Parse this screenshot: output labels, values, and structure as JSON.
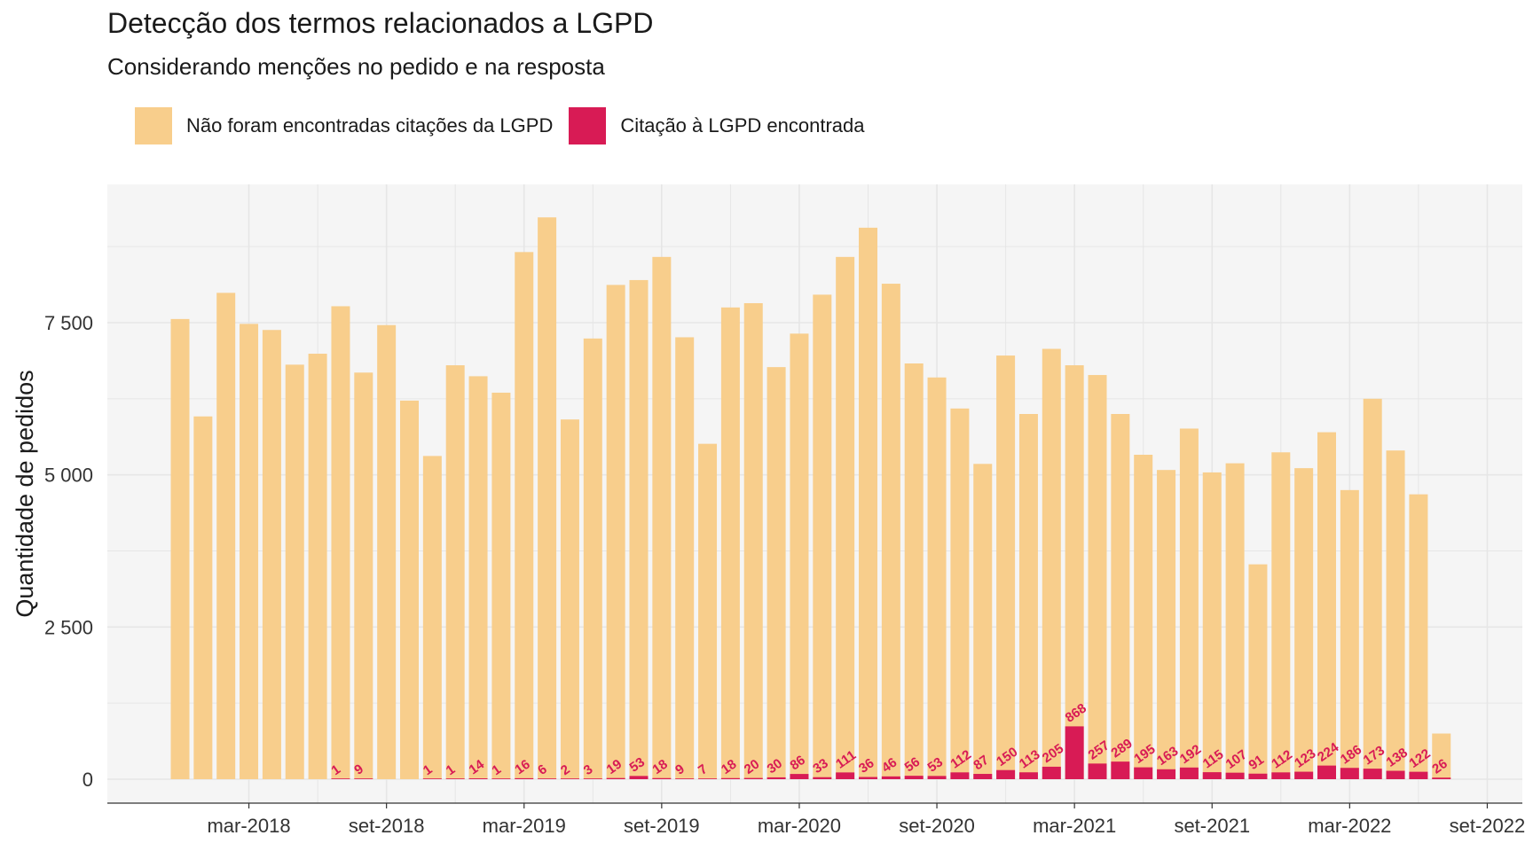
{
  "chart_data": {
    "type": "bar",
    "stacked": true,
    "title": "Detecção dos termos relacionados a LGPD",
    "subtitle": "Considerando menções no pedido e na resposta",
    "ylabel": "Quantidade de pedidos",
    "xlabel": "",
    "ylim": [
      0,
      9700
    ],
    "y_ticks": [
      0,
      2500,
      5000,
      7500
    ],
    "y_tick_labels": [
      "0",
      "2 500",
      "5 000",
      "7 500"
    ],
    "x_ticks": [
      "2018-03",
      "2018-09",
      "2019-03",
      "2019-09",
      "2020-03",
      "2020-09",
      "2021-03",
      "2021-09",
      "2022-03",
      "2022-09"
    ],
    "x_tick_labels": [
      "mar-2018",
      "set-2018",
      "mar-2019",
      "set-2019",
      "mar-2020",
      "set-2020",
      "mar-2021",
      "set-2021",
      "mar-2022",
      "set-2022"
    ],
    "x_range": [
      "2017-11",
      "2022-10"
    ],
    "grid": true,
    "legend_position": "top-left",
    "colors": {
      "not_found": "#f8ce8c",
      "found": "#d81b55",
      "panel": "#f5f5f5",
      "grid": "#e6e6e6"
    },
    "categories": [
      "2017-12",
      "2018-01",
      "2018-02",
      "2018-03",
      "2018-04",
      "2018-05",
      "2018-06",
      "2018-07",
      "2018-08",
      "2018-09",
      "2018-10",
      "2018-11",
      "2018-12",
      "2019-01",
      "2019-02",
      "2019-03",
      "2019-04",
      "2019-05",
      "2019-06",
      "2019-07",
      "2019-08",
      "2019-09",
      "2019-10",
      "2019-11",
      "2019-12",
      "2020-01",
      "2020-02",
      "2020-03",
      "2020-04",
      "2020-05",
      "2020-06",
      "2020-07",
      "2020-08",
      "2020-09",
      "2020-10",
      "2020-11",
      "2020-12",
      "2021-01",
      "2021-02",
      "2021-03",
      "2021-04",
      "2021-05",
      "2021-06",
      "2021-07",
      "2021-08",
      "2021-09",
      "2021-10",
      "2021-11",
      "2021-12",
      "2022-01",
      "2022-02",
      "2022-03",
      "2022-04",
      "2022-05",
      "2022-06",
      "2022-07",
      "2022-08"
    ],
    "series": [
      {
        "name": "Não foram encontradas citações da LGPD",
        "totals": [
          7560,
          5960,
          7990,
          7480,
          7380,
          6810,
          6990,
          7770,
          6680,
          7460,
          6220,
          5310,
          6800,
          6620,
          6350,
          8660,
          9230,
          5910,
          7240,
          8120,
          8200,
          8580,
          7260,
          5510,
          7750,
          7820,
          6770,
          7320,
          7960,
          8580,
          9060,
          8140,
          6830,
          6600,
          6090,
          5180,
          6960,
          6000,
          7070,
          6800,
          6640,
          6000,
          5330,
          5080,
          5760,
          5040,
          5190,
          3530,
          5370,
          5110,
          5700,
          4750,
          6250,
          5400,
          4680,
          750,
          0
        ]
      },
      {
        "name": "Citação à LGPD encontrada",
        "values": [
          0,
          0,
          0,
          0,
          0,
          0,
          0,
          1,
          9,
          0,
          0,
          1,
          1,
          14,
          1,
          16,
          6,
          2,
          3,
          19,
          53,
          18,
          9,
          7,
          18,
          20,
          30,
          86,
          33,
          111,
          36,
          46,
          56,
          53,
          112,
          87,
          150,
          113,
          205,
          868,
          257,
          289,
          195,
          163,
          192,
          115,
          107,
          91,
          112,
          123,
          224,
          186,
          173,
          138,
          122,
          26,
          0
        ],
        "labels": [
          "",
          "",
          "",
          "",
          "",
          "",
          "",
          "1",
          "9",
          "",
          "",
          "1",
          "1",
          "14",
          "1",
          "16",
          "6",
          "2",
          "3",
          "19",
          "53",
          "18",
          "9",
          "7",
          "18",
          "20",
          "30",
          "86",
          "33",
          "111",
          "36",
          "46",
          "56",
          "53",
          "112",
          "87",
          "150",
          "113",
          "205",
          "868",
          "257",
          "289",
          "195",
          "163",
          "192",
          "115",
          "107",
          "91",
          "112",
          "123",
          "224",
          "186",
          "173",
          "138",
          "122",
          "26",
          ""
        ]
      }
    ]
  }
}
